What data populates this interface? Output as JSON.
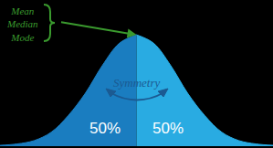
{
  "chart_data": {
    "type": "area",
    "x": [
      -3.2,
      -2.8,
      -2.4,
      -2.0,
      -1.6,
      -1.2,
      -0.8,
      -0.4,
      0,
      0.4,
      0.8,
      1.2,
      1.6,
      2.0,
      2.4,
      2.8,
      3.2
    ],
    "series": [
      {
        "color": "#1a7dc0",
        "values": [
          0.003,
          0.008,
          0.02,
          0.05,
          0.11,
          0.19,
          0.29,
          0.37,
          0.4,
          null,
          null,
          null,
          null,
          null,
          null,
          null,
          null
        ],
        "share": 50,
        "share_label": "50%"
      },
      {
        "color": "#29abe2",
        "values": [
          null,
          null,
          null,
          null,
          null,
          null,
          null,
          null,
          0.4,
          0.37,
          0.29,
          0.19,
          0.11,
          0.05,
          0.02,
          0.008,
          0.003
        ],
        "share": 50,
        "share_label": "50%"
      }
    ],
    "annotations": [
      {
        "lines": [
          "Mean",
          "Median",
          "Mode"
        ],
        "color": "#3a9a2e"
      },
      {
        "lines": [
          "Symmetry"
        ],
        "color": "#1b5a92"
      }
    ],
    "xlim": [
      -3.2,
      3.2
    ],
    "ylim": [
      0,
      0.42
    ],
    "grid": false,
    "tick_labels": false
  }
}
